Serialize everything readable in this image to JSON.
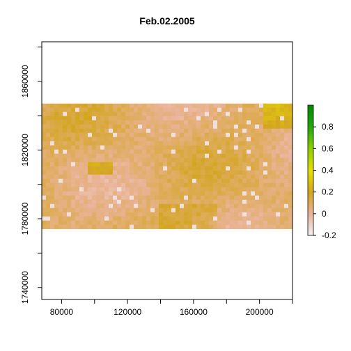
{
  "chart_data": {
    "type": "heatmap",
    "title": "Feb.02.2005",
    "xlabel": "",
    "ylabel": "",
    "x_ticks": [
      80000,
      120000,
      160000,
      200000
    ],
    "y_ticks": [
      1740000,
      1780000,
      1820000,
      1860000
    ],
    "x_tick_labels": [
      "80000",
      "120000",
      "160000",
      "200000"
    ],
    "y_tick_labels": [
      "1740000",
      "1780000",
      "1820000",
      "1860000"
    ],
    "xlim": [
      68000,
      220000
    ],
    "ylim": [
      1733000,
      1883000
    ],
    "raster_extent": {
      "x": [
        68000,
        220000
      ],
      "y": [
        1774000,
        1847000
      ]
    },
    "color_scale": {
      "min": -0.2,
      "max": 1.0,
      "ticks": [
        -0.2,
        0,
        0.2,
        0.4,
        0.6,
        0.8
      ],
      "tick_labels": [
        "-0.2",
        "0",
        "0.2",
        "0.4",
        "0.6",
        "0.8"
      ],
      "stops": [
        "#f3eff3",
        "#eab49a",
        "#d4a520",
        "#e6e000",
        "#8fd000",
        "#23a80f",
        "#008a00"
      ]
    },
    "typical_value": 0.08,
    "grid": false,
    "legend": "right colorbar"
  }
}
